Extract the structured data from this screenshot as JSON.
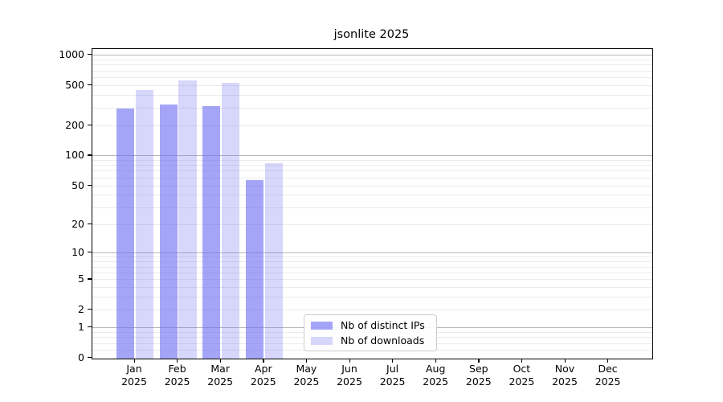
{
  "title": "jsonlite 2025",
  "colors": {
    "background": "#ffffff",
    "axis": "#000000",
    "text": "#000000",
    "grid_minor": "#ebebeb",
    "grid_major": "#b7b7b7",
    "bar_distinct_ips": "rgba(110,110,243,0.62)",
    "bar_downloads": "rgba(110,110,243,0.28)"
  },
  "chart_data": {
    "type": "bar",
    "title": "jsonlite 2025",
    "year_label": "2025",
    "categories": [
      "Jan",
      "Feb",
      "Mar",
      "Apr",
      "May",
      "Jun",
      "Jul",
      "Aug",
      "Sep",
      "Oct",
      "Nov",
      "Dec"
    ],
    "series": [
      {
        "name": "Nb of distinct IPs",
        "color": "rgba(110,110,243,0.62)",
        "values": [
          293,
          320,
          308,
          56,
          null,
          null,
          null,
          null,
          null,
          null,
          null,
          null
        ]
      },
      {
        "name": "Nb of downloads",
        "color": "rgba(110,110,243,0.28)",
        "values": [
          447,
          560,
          527,
          84,
          null,
          null,
          null,
          null,
          null,
          null,
          null,
          null
        ]
      }
    ],
    "y_axis": {
      "scale": "log1p",
      "tick_values": [
        0,
        1,
        2,
        5,
        10,
        20,
        50,
        100,
        200,
        500,
        1000
      ],
      "tick_labels": [
        "0",
        "1",
        "2",
        "5",
        "10",
        "20",
        "50",
        "100",
        "200",
        "500",
        "1000"
      ],
      "grid_major_values": [
        1,
        10,
        100,
        1000
      ],
      "grid_minor_values": [
        0.2,
        0.4,
        0.6,
        0.8,
        2,
        3,
        4,
        5,
        6,
        7,
        8,
        9,
        20,
        30,
        40,
        50,
        60,
        70,
        80,
        90,
        200,
        300,
        400,
        500,
        600,
        700,
        800,
        900
      ],
      "ylim": [
        0,
        1140
      ]
    },
    "grid": "on",
    "legend_position": "bottom-center-inside"
  },
  "legend": {
    "items": [
      {
        "label": "Nb of distinct IPs"
      },
      {
        "label": "Nb of downloads"
      }
    ]
  }
}
